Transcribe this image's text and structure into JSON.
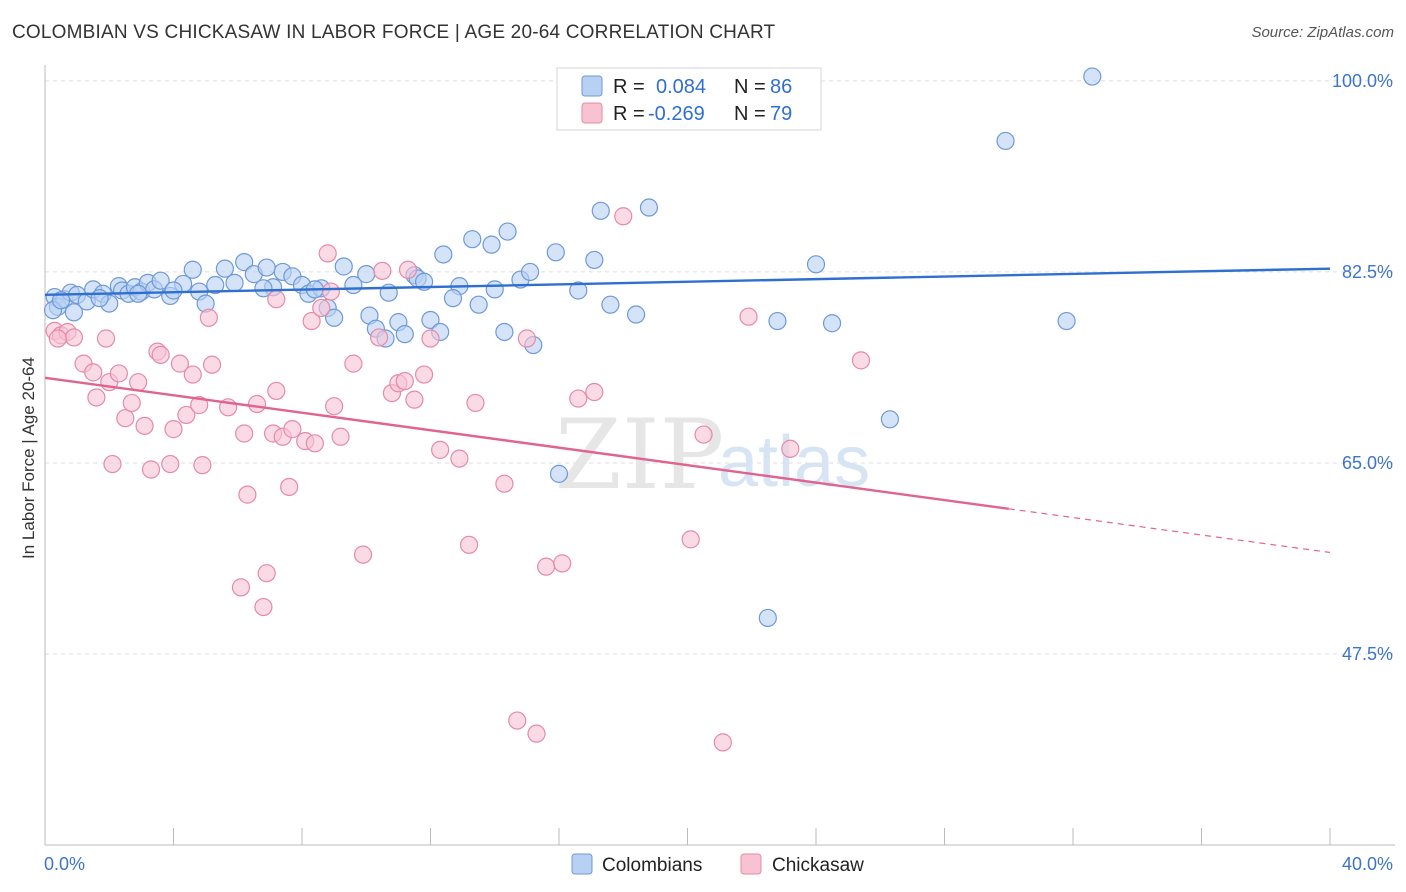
{
  "header": {
    "title": "COLOMBIAN VS CHICKASAW IN LABOR FORCE | AGE 20-64 CORRELATION CHART",
    "source": "Source: ZipAtlas.com"
  },
  "colors": {
    "blue_fill": "#b8d1f3",
    "blue_stroke": "#6e9ad8",
    "blue_line": "#2f6fd0",
    "pink_fill": "#f7c3d3",
    "pink_stroke": "#e58aa8",
    "pink_line": "#e0648f",
    "grid": "#dddddd",
    "tick_text": "#3d74c9"
  },
  "watermark": {
    "zip": "ZIP",
    "atlas": "atlas"
  },
  "legend": {
    "blue": {
      "r_label": "R =",
      "r_value": "0.084",
      "n_label": "N =",
      "n_value": "86"
    },
    "pink": {
      "r_label": "R =",
      "r_value": "-0.269",
      "n_label": "N =",
      "n_value": "79"
    }
  },
  "chart_data": {
    "type": "scatter",
    "title": "COLOMBIAN VS CHICKASAW IN LABOR FORCE | AGE 20-64 CORRELATION CHART",
    "xlabel": "",
    "ylabel": "In Labor Force | Age 20-64",
    "xlim": [
      0,
      40
    ],
    "ylim": [
      30,
      101
    ],
    "x_tick_labels": [
      "0.0%",
      "40.0%"
    ],
    "y_ticks": [
      47.5,
      65.0,
      82.5,
      100.0
    ],
    "y_tick_labels": [
      "47.5%",
      "65.0%",
      "82.5%",
      "100.0%"
    ],
    "grid": true,
    "legend_position": "top-center",
    "series": [
      {
        "name": "Colombians",
        "r": 0.084,
        "n": 86,
        "trend": {
          "x": [
            0,
            40
          ],
          "y": [
            80.4,
            82.8
          ],
          "dashed_from": null
        },
        "points": [
          [
            0.3,
            80.2
          ],
          [
            0.4,
            79.3
          ],
          [
            0.6,
            80.0
          ],
          [
            0.8,
            80.6
          ],
          [
            1.0,
            80.4
          ],
          [
            1.3,
            79.8
          ],
          [
            1.5,
            80.9
          ],
          [
            1.8,
            80.5
          ],
          [
            2.0,
            79.6
          ],
          [
            2.3,
            81.2
          ],
          [
            2.4,
            80.8
          ],
          [
            2.6,
            80.5
          ],
          [
            2.8,
            81.1
          ],
          [
            3.0,
            80.7
          ],
          [
            3.2,
            81.5
          ],
          [
            3.4,
            80.9
          ],
          [
            3.6,
            81.7
          ],
          [
            3.9,
            80.3
          ],
          [
            4.3,
            81.4
          ],
          [
            4.6,
            82.7
          ],
          [
            4.8,
            80.7
          ],
          [
            5.0,
            79.6
          ],
          [
            5.3,
            81.3
          ],
          [
            5.6,
            82.8
          ],
          [
            5.9,
            81.5
          ],
          [
            6.2,
            83.4
          ],
          [
            6.5,
            82.3
          ],
          [
            6.9,
            82.9
          ],
          [
            7.1,
            81.1
          ],
          [
            7.4,
            82.5
          ],
          [
            7.7,
            82.1
          ],
          [
            8.0,
            81.3
          ],
          [
            8.2,
            80.5
          ],
          [
            8.6,
            81.0
          ],
          [
            8.8,
            79.2
          ],
          [
            9.0,
            78.3
          ],
          [
            9.3,
            83.0
          ],
          [
            9.6,
            81.3
          ],
          [
            10.1,
            78.5
          ],
          [
            10.3,
            77.3
          ],
          [
            10.6,
            76.4
          ],
          [
            10.7,
            80.6
          ],
          [
            11.0,
            77.9
          ],
          [
            11.2,
            76.8
          ],
          [
            11.5,
            82.2
          ],
          [
            11.6,
            81.9
          ],
          [
            11.8,
            81.6
          ],
          [
            12.0,
            78.1
          ],
          [
            12.3,
            77.0
          ],
          [
            12.4,
            84.1
          ],
          [
            12.9,
            81.2
          ],
          [
            13.3,
            85.5
          ],
          [
            13.5,
            79.5
          ],
          [
            13.9,
            85.0
          ],
          [
            14.3,
            77.0
          ],
          [
            14.4,
            86.2
          ],
          [
            14.8,
            81.8
          ],
          [
            15.1,
            82.5
          ],
          [
            15.2,
            75.8
          ],
          [
            15.9,
            84.3
          ],
          [
            16.0,
            64.0
          ],
          [
            16.6,
            80.8
          ],
          [
            17.1,
            83.6
          ],
          [
            17.3,
            88.1
          ],
          [
            17.6,
            79.5
          ],
          [
            18.4,
            78.6
          ],
          [
            18.8,
            88.4
          ],
          [
            22.5,
            50.8
          ],
          [
            22.8,
            78.0
          ],
          [
            24.0,
            83.2
          ],
          [
            24.5,
            77.8
          ],
          [
            26.3,
            69.0
          ],
          [
            29.9,
            94.5
          ],
          [
            31.8,
            78.0
          ],
          [
            32.6,
            100.4
          ],
          [
            0.25,
            79.0
          ],
          [
            0.5,
            79.9
          ],
          [
            0.9,
            78.8
          ],
          [
            1.7,
            80.1
          ],
          [
            2.9,
            80.5
          ],
          [
            4.0,
            80.8
          ],
          [
            6.8,
            81.0
          ],
          [
            8.4,
            80.9
          ],
          [
            10.0,
            82.3
          ],
          [
            12.7,
            80.1
          ],
          [
            14.0,
            80.9
          ]
        ]
      },
      {
        "name": "Chickasaw",
        "r": -0.269,
        "n": 79,
        "trend": {
          "x": [
            0,
            40
          ],
          "y": [
            72.8,
            56.8
          ],
          "dashed_from": 30.0
        },
        "points": [
          [
            0.3,
            77.1
          ],
          [
            0.5,
            76.7
          ],
          [
            0.7,
            77.0
          ],
          [
            0.9,
            76.5
          ],
          [
            1.2,
            74.1
          ],
          [
            1.5,
            73.3
          ],
          [
            1.6,
            71.0
          ],
          [
            1.9,
            76.4
          ],
          [
            2.0,
            72.4
          ],
          [
            2.1,
            64.9
          ],
          [
            2.3,
            73.2
          ],
          [
            2.5,
            69.1
          ],
          [
            2.7,
            70.5
          ],
          [
            2.9,
            72.4
          ],
          [
            3.1,
            68.4
          ],
          [
            3.3,
            64.4
          ],
          [
            3.5,
            75.2
          ],
          [
            3.6,
            74.9
          ],
          [
            3.9,
            64.9
          ],
          [
            4.0,
            68.1
          ],
          [
            4.2,
            74.1
          ],
          [
            4.4,
            69.4
          ],
          [
            4.6,
            73.1
          ],
          [
            4.8,
            70.3
          ],
          [
            4.9,
            64.8
          ],
          [
            5.1,
            78.3
          ],
          [
            5.2,
            74.0
          ],
          [
            5.7,
            70.1
          ],
          [
            6.1,
            53.6
          ],
          [
            6.2,
            67.7
          ],
          [
            6.3,
            62.1
          ],
          [
            6.6,
            70.4
          ],
          [
            6.8,
            51.8
          ],
          [
            6.9,
            54.9
          ],
          [
            7.1,
            67.7
          ],
          [
            7.2,
            71.6
          ],
          [
            7.2,
            80.0
          ],
          [
            7.4,
            67.4
          ],
          [
            7.6,
            62.8
          ],
          [
            7.7,
            68.1
          ],
          [
            8.1,
            67.0
          ],
          [
            8.3,
            78.0
          ],
          [
            8.4,
            66.8
          ],
          [
            8.6,
            79.2
          ],
          [
            8.8,
            84.2
          ],
          [
            8.9,
            80.7
          ],
          [
            9.0,
            70.2
          ],
          [
            9.2,
            67.4
          ],
          [
            9.6,
            74.1
          ],
          [
            9.9,
            56.6
          ],
          [
            10.4,
            76.5
          ],
          [
            10.5,
            82.6
          ],
          [
            10.8,
            71.4
          ],
          [
            11.0,
            72.3
          ],
          [
            11.2,
            72.5
          ],
          [
            11.3,
            82.7
          ],
          [
            11.5,
            70.8
          ],
          [
            11.8,
            73.1
          ],
          [
            12.0,
            76.4
          ],
          [
            12.3,
            66.2
          ],
          [
            12.9,
            65.4
          ],
          [
            13.2,
            57.5
          ],
          [
            13.4,
            70.5
          ],
          [
            14.3,
            63.1
          ],
          [
            14.7,
            41.4
          ],
          [
            15.0,
            76.4
          ],
          [
            15.3,
            40.2
          ],
          [
            15.6,
            55.5
          ],
          [
            16.1,
            55.8
          ],
          [
            16.6,
            70.9
          ],
          [
            17.1,
            71.5
          ],
          [
            18.0,
            87.6
          ],
          [
            20.1,
            58.0
          ],
          [
            20.5,
            67.6
          ],
          [
            21.1,
            39.4
          ],
          [
            21.9,
            78.4
          ],
          [
            23.2,
            66.3
          ],
          [
            25.4,
            74.4
          ],
          [
            0.4,
            76.4
          ]
        ]
      }
    ]
  },
  "bottom_legend": {
    "blue_label": "Colombians",
    "pink_label": "Chickasaw"
  }
}
